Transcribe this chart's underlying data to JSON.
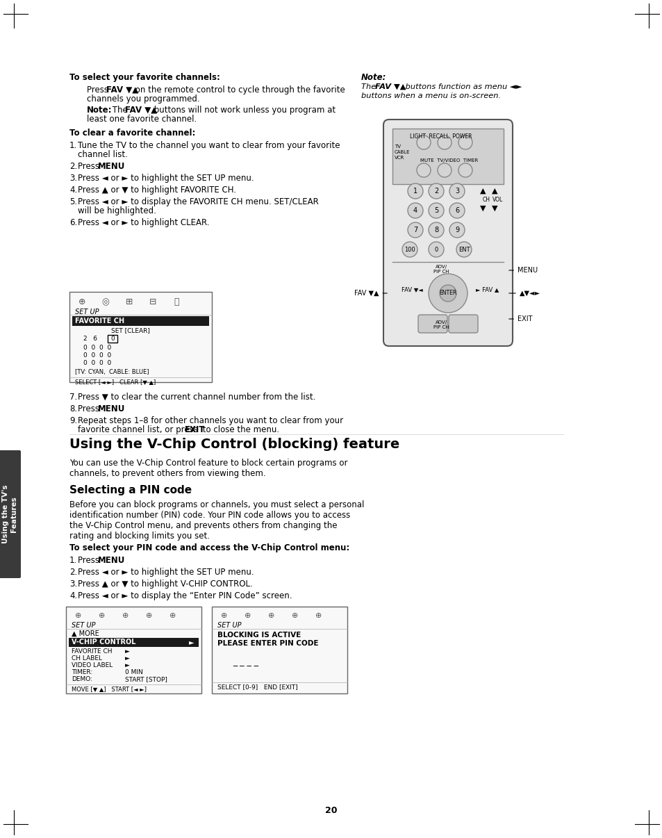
{
  "page_bg": "#ffffff",
  "text_color": "#000000",
  "tab_color": "#4a4a4a",
  "tab_text": "Using the TV's\nFeatures",
  "section_title": "Using the V-Chip Control (blocking) feature",
  "subsection_title": "Selecting a PIN code",
  "page_number": "20",
  "corner_marks": true,
  "top_heading": "To select your favorite channels:",
  "top_para1": "Press FAV ▼▲ on the remote control to cycle through the favorite\nchannels you programmed.",
  "top_note_label": "Note:",
  "top_note_text": "The FAV ▼▲ buttons will not work unless you program at\nleast one favorite channel.",
  "note_right_label": "Note:",
  "note_right_text": "The FAV ▼▲ buttons function as menu ◄►\nbuttons when a menu is on-screen.",
  "clear_heading": "To clear a favorite channel:",
  "clear_steps": [
    "Tune the TV to the channel you want to clear from your favorite\nchannel list.",
    "Press MENU.",
    "Press ◄ or ► to highlight the SET UP menu.",
    "Press ▲ or ▼ to highlight FAVORITE CH.",
    "Press ◄ or ► to display the FAVORITE CH menu. SET/CLEAR\nwill be highlighted.",
    "Press ◄ or ► to highlight CLEAR.",
    "Press ▼ to clear the current channel number from the list.",
    "Press MENU.",
    "Repeat steps 1–8 for other channels you want to clear from your\nfavorite channel list, or press EXIT to close the menu."
  ],
  "pin_intro": "Before you can block programs or channels, you must select a personal\nidentification number (PIN) code. Your PIN code allows you to access\nthe V-Chip Control menu, and prevents others from changing the\nrating and blocking limits you set.",
  "pin_heading": "To select your PIN code and access the V-Chip Control menu:",
  "pin_steps": [
    "Press MENU.",
    "Press ◄ or ► to highlight the SET UP menu.",
    "Press ▲ or ▼ to highlight V-CHIP CONTROL.",
    "Press ◄ or ► to display the “Enter PIN Code” screen."
  ],
  "section_intro": "You can use the V-Chip Control feature to block certain programs or\nchannels, to prevent others from viewing them."
}
